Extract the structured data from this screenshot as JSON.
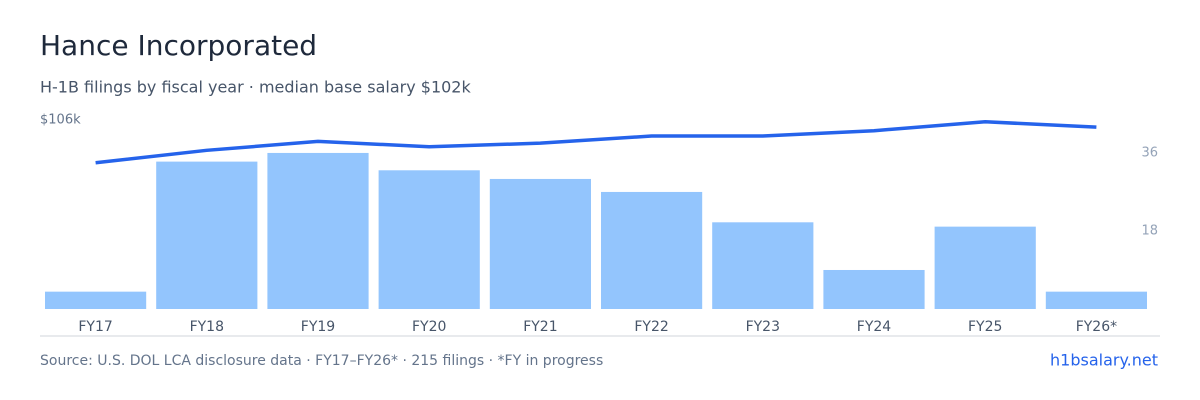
{
  "chart_data": {
    "type": "bar-line",
    "title": "Hance Incorporated",
    "subtitle": "H-1B filings by fiscal year · median base salary $102k",
    "categories": [
      "FY17",
      "FY18",
      "FY19",
      "FY20",
      "FY21",
      "FY22",
      "FY23",
      "FY24",
      "FY25",
      "FY26*"
    ],
    "series": [
      {
        "name": "Filings",
        "type": "bar",
        "axis": "y2",
        "color": "#93c5fd",
        "values": [
          4,
          34,
          36,
          32,
          30,
          27,
          20,
          9,
          19,
          4
        ]
      },
      {
        "name": "Median base salary",
        "type": "line",
        "color": "#2563eb",
        "values": [
          82,
          89,
          94,
          91,
          93,
          97,
          97,
          100,
          105,
          102
        ]
      }
    ],
    "ylim": [
      0,
      106
    ],
    "yticks": [
      {
        "value": 106,
        "label": "$106k"
      }
    ],
    "y2lim": [
      0,
      43.6
    ],
    "y2ticks": [
      18,
      36
    ],
    "source": "Source: U.S. DOL LCA disclosure data · FY17–FY26* · 215 filings · *FY in progress",
    "brand": "h1bsalary.net"
  }
}
